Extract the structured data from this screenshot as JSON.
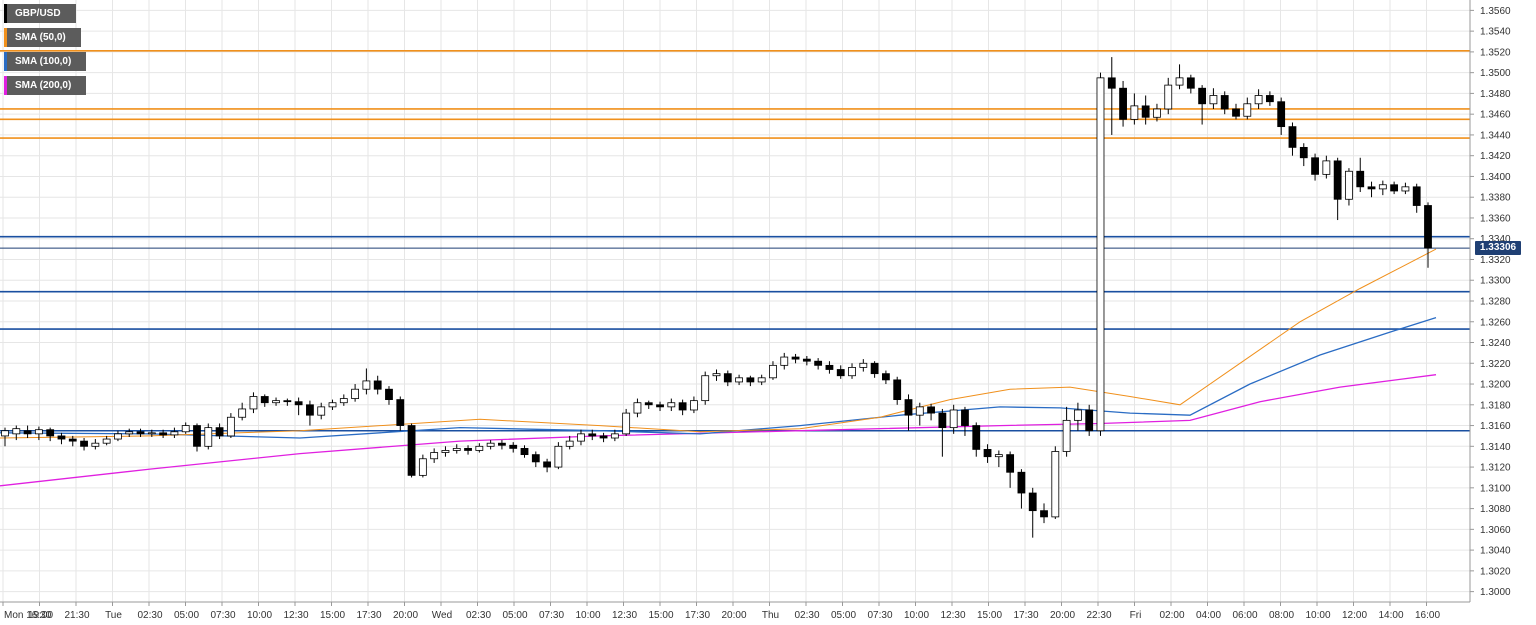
{
  "legend": [
    {
      "label": "GBP/USD",
      "color": "#000000"
    },
    {
      "label": "SMA (50,0)",
      "color": "#f0901c"
    },
    {
      "label": "SMA (100,0)",
      "color": "#2a6cc4"
    },
    {
      "label": "SMA (200,0)",
      "color": "#e020e0"
    }
  ],
  "current_price": "1.33306",
  "colors": {
    "bull": "#ffffff",
    "bear": "#000000",
    "resistance": "#f0901c",
    "support": "#1a4fa0",
    "current": "#1f3f73",
    "grid": "#e6e6e6"
  },
  "chart_data": {
    "type": "candlestick",
    "symbol": "GBP/USD",
    "ylim": [
      1.299,
      1.357
    ],
    "y_ticks": [
      "1.3000",
      "1.3020",
      "1.3040",
      "1.3060",
      "1.3080",
      "1.3100",
      "1.3120",
      "1.3140",
      "1.3160",
      "1.3180",
      "1.3200",
      "1.3220",
      "1.3240",
      "1.3260",
      "1.3280",
      "1.3300",
      "1.3320",
      "1.3340",
      "1.3360",
      "1.3380",
      "1.3400",
      "1.3420",
      "1.3440",
      "1.3460",
      "1.3480",
      "1.3500",
      "1.3520",
      "1.3540",
      "1.3560"
    ],
    "x_ticks": [
      "Mon 16:30",
      "19:00",
      "21:30",
      "Tue",
      "02:30",
      "05:00",
      "07:30",
      "10:00",
      "12:30",
      "15:00",
      "17:30",
      "20:00",
      "Wed",
      "02:30",
      "05:00",
      "07:30",
      "10:00",
      "12:30",
      "15:00",
      "17:30",
      "20:00",
      "Thu",
      "02:30",
      "05:00",
      "07:30",
      "10:00",
      "12:30",
      "15:00",
      "17:30",
      "20:00",
      "22:30",
      "Fri",
      "02:00",
      "04:00",
      "06:00",
      "08:00",
      "10:00",
      "12:00",
      "14:00",
      "16:00"
    ],
    "resistance_levels": [
      1.3521,
      1.3465,
      1.3455,
      1.3437
    ],
    "support_levels": [
      1.3342,
      1.3289,
      1.3253,
      1.3155
    ],
    "current_level": 1.3331,
    "sma50": [
      [
        0,
        1.3148
      ],
      [
        150,
        1.315
      ],
      [
        300,
        1.3155
      ],
      [
        480,
        1.3166
      ],
      [
        600,
        1.316
      ],
      [
        700,
        1.3154
      ],
      [
        800,
        1.3157
      ],
      [
        880,
        1.3168
      ],
      [
        950,
        1.3185
      ],
      [
        1010,
        1.3195
      ],
      [
        1070,
        1.3197
      ],
      [
        1130,
        1.3188
      ],
      [
        1180,
        1.318
      ],
      [
        1240,
        1.322
      ],
      [
        1300,
        1.326
      ],
      [
        1360,
        1.3292
      ],
      [
        1400,
        1.3312
      ],
      [
        1436,
        1.333
      ]
    ],
    "sma100": [
      [
        0,
        1.3153
      ],
      [
        150,
        1.3152
      ],
      [
        300,
        1.3148
      ],
      [
        460,
        1.3158
      ],
      [
        600,
        1.3155
      ],
      [
        700,
        1.3152
      ],
      [
        800,
        1.316
      ],
      [
        900,
        1.317
      ],
      [
        1000,
        1.3178
      ],
      [
        1060,
        1.3177
      ],
      [
        1130,
        1.3172
      ],
      [
        1190,
        1.317
      ],
      [
        1250,
        1.32
      ],
      [
        1320,
        1.3228
      ],
      [
        1390,
        1.325
      ],
      [
        1436,
        1.3264
      ]
    ],
    "sma200": [
      [
        0,
        1.3102
      ],
      [
        150,
        1.3118
      ],
      [
        300,
        1.3133
      ],
      [
        460,
        1.3145
      ],
      [
        600,
        1.315
      ],
      [
        800,
        1.3155
      ],
      [
        1000,
        1.316
      ],
      [
        1100,
        1.3162
      ],
      [
        1190,
        1.3165
      ],
      [
        1260,
        1.3183
      ],
      [
        1340,
        1.3197
      ],
      [
        1436,
        1.3209
      ]
    ],
    "candles": [
      [
        1.315,
        1.3155,
        1.314,
        1.3158
      ],
      [
        1.3152,
        1.3157,
        1.3146,
        1.316
      ],
      [
        1.3155,
        1.3152,
        1.3148,
        1.316
      ],
      [
        1.3152,
        1.3156,
        1.3146,
        1.3159
      ],
      [
        1.3156,
        1.315,
        1.3145,
        1.3158
      ],
      [
        1.315,
        1.3147,
        1.3142,
        1.3153
      ],
      [
        1.3147,
        1.3145,
        1.314,
        1.315
      ],
      [
        1.3145,
        1.314,
        1.3136,
        1.3148
      ],
      [
        1.314,
        1.3143,
        1.3137,
        1.3147
      ],
      [
        1.3143,
        1.3147,
        1.3141,
        1.315
      ],
      [
        1.3147,
        1.3152,
        1.3145,
        1.3155
      ],
      [
        1.3152,
        1.3154,
        1.3149,
        1.3157
      ],
      [
        1.3154,
        1.3152,
        1.3149,
        1.3157
      ],
      [
        1.3152,
        1.3153,
        1.3149,
        1.3156
      ],
      [
        1.3153,
        1.3151,
        1.3148,
        1.3156
      ],
      [
        1.3151,
        1.3154,
        1.3148,
        1.3158
      ],
      [
        1.3154,
        1.316,
        1.3152,
        1.3163
      ],
      [
        1.316,
        1.314,
        1.3135,
        1.3162
      ],
      [
        1.314,
        1.3158,
        1.3137,
        1.3162
      ],
      [
        1.3158,
        1.315,
        1.3147,
        1.3162
      ],
      [
        1.315,
        1.3168,
        1.3148,
        1.3172
      ],
      [
        1.3168,
        1.3176,
        1.3165,
        1.3182
      ],
      [
        1.3176,
        1.3188,
        1.3172,
        1.3192
      ],
      [
        1.3188,
        1.3182,
        1.3178,
        1.319
      ],
      [
        1.3182,
        1.3184,
        1.3179,
        1.3187
      ],
      [
        1.3184,
        1.3183,
        1.3179,
        1.3186
      ],
      [
        1.3183,
        1.318,
        1.317,
        1.3187
      ],
      [
        1.318,
        1.317,
        1.316,
        1.3184
      ],
      [
        1.317,
        1.3178,
        1.3166,
        1.3182
      ],
      [
        1.3178,
        1.3182,
        1.3175,
        1.3185
      ],
      [
        1.3182,
        1.3186,
        1.3179,
        1.319
      ],
      [
        1.3186,
        1.3195,
        1.3183,
        1.32
      ],
      [
        1.3195,
        1.3203,
        1.319,
        1.3215
      ],
      [
        1.3203,
        1.3195,
        1.319,
        1.3208
      ],
      [
        1.3195,
        1.3185,
        1.318,
        1.3198
      ],
      [
        1.3185,
        1.316,
        1.3155,
        1.3188
      ],
      [
        1.316,
        1.3112,
        1.311,
        1.3162
      ],
      [
        1.3112,
        1.3128,
        1.311,
        1.3132
      ],
      [
        1.3128,
        1.3134,
        1.3124,
        1.3138
      ],
      [
        1.3134,
        1.3136,
        1.313,
        1.314
      ],
      [
        1.3136,
        1.3138,
        1.3133,
        1.3142
      ],
      [
        1.3138,
        1.3136,
        1.3132,
        1.3141
      ],
      [
        1.3136,
        1.314,
        1.3134,
        1.3143
      ],
      [
        1.314,
        1.3143,
        1.3137,
        1.3146
      ],
      [
        1.3143,
        1.3141,
        1.3137,
        1.3146
      ],
      [
        1.3141,
        1.3138,
        1.3134,
        1.3144
      ],
      [
        1.3138,
        1.3132,
        1.3129,
        1.3141
      ],
      [
        1.3132,
        1.3125,
        1.312,
        1.3135
      ],
      [
        1.3125,
        1.312,
        1.3115,
        1.3128
      ],
      [
        1.312,
        1.314,
        1.3118,
        1.3144
      ],
      [
        1.314,
        1.3145,
        1.3137,
        1.315
      ],
      [
        1.3145,
        1.3152,
        1.3141,
        1.3156
      ],
      [
        1.3152,
        1.315,
        1.3146,
        1.3156
      ],
      [
        1.315,
        1.3148,
        1.3144,
        1.3153
      ],
      [
        1.3148,
        1.3152,
        1.3145,
        1.3156
      ],
      [
        1.3152,
        1.3172,
        1.315,
        1.3176
      ],
      [
        1.3172,
        1.3182,
        1.3168,
        1.3186
      ],
      [
        1.3182,
        1.318,
        1.3176,
        1.3184
      ],
      [
        1.318,
        1.3178,
        1.3174,
        1.3183
      ],
      [
        1.3178,
        1.3182,
        1.3174,
        1.3186
      ],
      [
        1.3182,
        1.3175,
        1.317,
        1.3185
      ],
      [
        1.3175,
        1.3184,
        1.3172,
        1.3188
      ],
      [
        1.3184,
        1.3208,
        1.318,
        1.3212
      ],
      [
        1.3208,
        1.321,
        1.3203,
        1.3214
      ],
      [
        1.321,
        1.3202,
        1.3198,
        1.3213
      ],
      [
        1.3202,
        1.3206,
        1.3199,
        1.3209
      ],
      [
        1.3206,
        1.3202,
        1.3198,
        1.3208
      ],
      [
        1.3202,
        1.3206,
        1.3199,
        1.3209
      ],
      [
        1.3206,
        1.3218,
        1.3204,
        1.3222
      ],
      [
        1.3218,
        1.3226,
        1.3214,
        1.323
      ],
      [
        1.3226,
        1.3224,
        1.322,
        1.3229
      ],
      [
        1.3224,
        1.3222,
        1.3218,
        1.3227
      ],
      [
        1.3222,
        1.3218,
        1.3214,
        1.3225
      ],
      [
        1.3218,
        1.3214,
        1.321,
        1.3222
      ],
      [
        1.3214,
        1.3208,
        1.3205,
        1.3218
      ],
      [
        1.3208,
        1.3216,
        1.3205,
        1.322
      ],
      [
        1.3216,
        1.322,
        1.3212,
        1.3224
      ],
      [
        1.322,
        1.321,
        1.3206,
        1.3222
      ],
      [
        1.321,
        1.3204,
        1.32,
        1.3213
      ],
      [
        1.3204,
        1.3185,
        1.318,
        1.3207
      ],
      [
        1.3185,
        1.317,
        1.3155,
        1.319
      ],
      [
        1.317,
        1.3178,
        1.316,
        1.3182
      ],
      [
        1.3178,
        1.3172,
        1.3165,
        1.3181
      ],
      [
        1.3172,
        1.3158,
        1.313,
        1.3176
      ],
      [
        1.3158,
        1.3175,
        1.3152,
        1.318
      ],
      [
        1.3175,
        1.316,
        1.315,
        1.3178
      ],
      [
        1.316,
        1.3137,
        1.313,
        1.3163
      ],
      [
        1.3137,
        1.313,
        1.3124,
        1.3142
      ],
      [
        1.313,
        1.3132,
        1.312,
        1.3136
      ],
      [
        1.3132,
        1.3115,
        1.31,
        1.3135
      ],
      [
        1.3115,
        1.3095,
        1.308,
        1.3118
      ],
      [
        1.3095,
        1.3078,
        1.3052,
        1.31
      ],
      [
        1.3078,
        1.3072,
        1.3066,
        1.3085
      ],
      [
        1.3072,
        1.3135,
        1.307,
        1.314
      ],
      [
        1.3135,
        1.3165,
        1.313,
        1.3178
      ],
      [
        1.3165,
        1.3175,
        1.3155,
        1.3182
      ],
      [
        1.3175,
        1.3155,
        1.315,
        1.318
      ],
      [
        1.3155,
        1.3495,
        1.315,
        1.35
      ],
      [
        1.3495,
        1.3485,
        1.344,
        1.3515
      ],
      [
        1.3485,
        1.3455,
        1.3448,
        1.3492
      ],
      [
        1.3455,
        1.3468,
        1.345,
        1.348
      ],
      [
        1.3468,
        1.3457,
        1.345,
        1.3478
      ],
      [
        1.3457,
        1.3465,
        1.3453,
        1.347
      ],
      [
        1.3465,
        1.3488,
        1.346,
        1.3495
      ],
      [
        1.3488,
        1.3495,
        1.3484,
        1.3508
      ],
      [
        1.3495,
        1.3485,
        1.348,
        1.3498
      ],
      [
        1.3485,
        1.347,
        1.345,
        1.3488
      ],
      [
        1.347,
        1.3478,
        1.3465,
        1.3485
      ],
      [
        1.3478,
        1.3465,
        1.346,
        1.3482
      ],
      [
        1.3465,
        1.3458,
        1.3455,
        1.347
      ],
      [
        1.3458,
        1.347,
        1.3455,
        1.3476
      ],
      [
        1.347,
        1.3478,
        1.3465,
        1.3484
      ],
      [
        1.3478,
        1.3472,
        1.3468,
        1.3482
      ],
      [
        1.3472,
        1.3448,
        1.344,
        1.3476
      ],
      [
        1.3448,
        1.3428,
        1.342,
        1.3452
      ],
      [
        1.3428,
        1.3418,
        1.341,
        1.3432
      ],
      [
        1.3418,
        1.3402,
        1.3396,
        1.3422
      ],
      [
        1.3402,
        1.3415,
        1.3398,
        1.342
      ],
      [
        1.3415,
        1.3378,
        1.3358,
        1.3418
      ],
      [
        1.3378,
        1.3405,
        1.3372,
        1.3408
      ],
      [
        1.3405,
        1.339,
        1.3385,
        1.3418
      ],
      [
        1.339,
        1.3388,
        1.338,
        1.3395
      ],
      [
        1.3388,
        1.3392,
        1.3382,
        1.3396
      ],
      [
        1.3392,
        1.3386,
        1.3383,
        1.3395
      ],
      [
        1.3386,
        1.339,
        1.3383,
        1.3394
      ],
      [
        1.339,
        1.3372,
        1.3365,
        1.3393
      ],
      [
        1.3372,
        1.3331,
        1.3312,
        1.3375
      ]
    ]
  }
}
